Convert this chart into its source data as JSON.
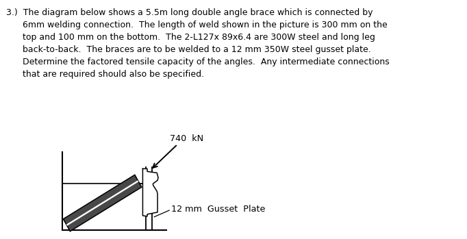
{
  "bg_color": "#ffffff",
  "text_color": "#000000",
  "paragraph": "3.)  The diagram below shows a 5.5m long double angle brace which is connected by\n      6mm welding connection.  The length of weld shown in the picture is 300 mm on the\n      top and 100 mm on the bottom.  The 2-L127x 89x6.4 are 300W steel and long leg\n      back-to-back.  The braces are to be welded to a 12 mm 350W steel gusset plate.\n      Determine the factored tensile capacity of the angles.  Any intermediate connections\n      that are required should also be specified.",
  "label_740": "740  kN",
  "label_gusset": "12 mm  Gusset  Plate",
  "font_size_para": 9.0,
  "font_size_label": 9.2,
  "ox": 1.0,
  "oy": 0.15
}
